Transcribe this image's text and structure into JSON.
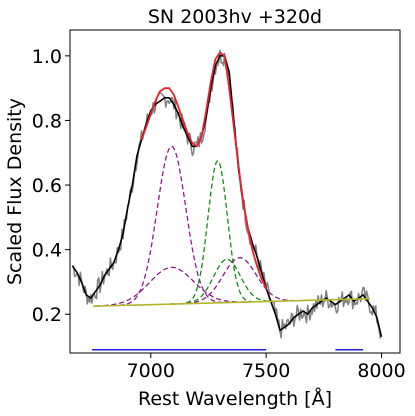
{
  "chart_data": {
    "type": "line",
    "title": "SN 2003hv  +320d",
    "xlabel": "Rest Wavelength [Å]",
    "ylabel": "Scaled Flux Density",
    "xlim": [
      6650,
      8080
    ],
    "ylim": [
      0.08,
      1.08
    ],
    "x_ticks": [
      7000,
      7500,
      8000
    ],
    "y_ticks": [
      0.2,
      0.4,
      0.6,
      0.8,
      1.0
    ],
    "x_tick_labels": [
      "7000",
      "7500",
      "8000"
    ],
    "y_tick_labels": [
      "0.2",
      "0.4",
      "0.6",
      "0.8",
      "1.0"
    ],
    "grid": false,
    "legend": "none",
    "colors": {
      "observed_raw": "#808080",
      "observed_smoothed": "#000000",
      "total_fit": "#e8212b",
      "continuum": "#b5b52a",
      "green_components": "#128a12",
      "purple_components": "#8b1a8b",
      "fit_regions": "#1f1fdd"
    },
    "series": [
      {
        "kind": "observed_smoothed",
        "x": [
          6660,
          6680,
          6700,
          6720,
          6740,
          6760,
          6780,
          6800,
          6820,
          6840,
          6860,
          6880,
          6900,
          6920,
          6940,
          6960,
          6980,
          7000,
          7020,
          7040,
          7060,
          7080,
          7100,
          7120,
          7140,
          7160,
          7180,
          7200,
          7220,
          7240,
          7260,
          7280,
          7300,
          7320,
          7340,
          7360,
          7380,
          7400,
          7420,
          7440,
          7460,
          7480,
          7500,
          7520,
          7540,
          7560,
          7580,
          7600,
          7620,
          7640,
          7660,
          7680,
          7700,
          7720,
          7740,
          7760,
          7780,
          7800,
          7820,
          7840,
          7860,
          7880,
          7900,
          7920,
          7940,
          7960,
          7980,
          8000
        ],
        "y": [
          0.35,
          0.33,
          0.3,
          0.26,
          0.25,
          0.27,
          0.29,
          0.32,
          0.34,
          0.36,
          0.4,
          0.45,
          0.53,
          0.6,
          0.69,
          0.74,
          0.79,
          0.83,
          0.85,
          0.86,
          0.87,
          0.87,
          0.85,
          0.82,
          0.78,
          0.75,
          0.72,
          0.72,
          0.75,
          0.81,
          0.9,
          0.97,
          1.0,
          1.0,
          0.95,
          0.8,
          0.65,
          0.55,
          0.47,
          0.42,
          0.38,
          0.33,
          0.28,
          0.24,
          0.2,
          0.15,
          0.16,
          0.17,
          0.19,
          0.2,
          0.21,
          0.2,
          0.22,
          0.23,
          0.24,
          0.25,
          0.24,
          0.23,
          0.24,
          0.25,
          0.26,
          0.24,
          0.25,
          0.26,
          0.24,
          0.22,
          0.19,
          0.13
        ]
      },
      {
        "kind": "total_fit",
        "x": [
          6960,
          6980,
          7000,
          7020,
          7040,
          7060,
          7080,
          7100,
          7120,
          7140,
          7160,
          7180,
          7200,
          7220,
          7240,
          7260,
          7280,
          7300,
          7320,
          7340,
          7360,
          7380,
          7400,
          7420,
          7440,
          7460,
          7480,
          7500
        ],
        "y": [
          0.74,
          0.78,
          0.82,
          0.86,
          0.89,
          0.9,
          0.9,
          0.88,
          0.84,
          0.8,
          0.76,
          0.73,
          0.72,
          0.75,
          0.83,
          0.92,
          0.99,
          1.01,
          1.0,
          0.9,
          0.78,
          0.66,
          0.55,
          0.47,
          0.4,
          0.35,
          0.31,
          0.28
        ]
      },
      {
        "kind": "continuum",
        "x": [
          6750,
          7950
        ],
        "y": [
          0.225,
          0.248
        ]
      },
      {
        "kind": "gaussian_purple",
        "center": 7090,
        "height": 0.72,
        "sigma": 62,
        "x_range": [
          6760,
          7480
        ]
      },
      {
        "kind": "gaussian_purple",
        "center": 7090,
        "height": 0.345,
        "sigma": 95,
        "x_range": [
          6760,
          7480
        ]
      },
      {
        "kind": "gaussian_green",
        "center": 7290,
        "height": 0.675,
        "sigma": 42,
        "x_range": [
          7050,
          7560
        ]
      },
      {
        "kind": "gaussian_green",
        "center": 7330,
        "height": 0.37,
        "sigma": 58,
        "x_range": [
          7050,
          7560
        ]
      },
      {
        "kind": "gaussian_purple",
        "center": 7385,
        "height": 0.375,
        "sigma": 72,
        "x_range": [
          7050,
          7660
        ]
      }
    ],
    "fit_regions": [
      {
        "x": [
          6745,
          7500
        ],
        "y": 0.09
      },
      {
        "x": [
          7800,
          7920
        ],
        "y": 0.09
      }
    ]
  }
}
